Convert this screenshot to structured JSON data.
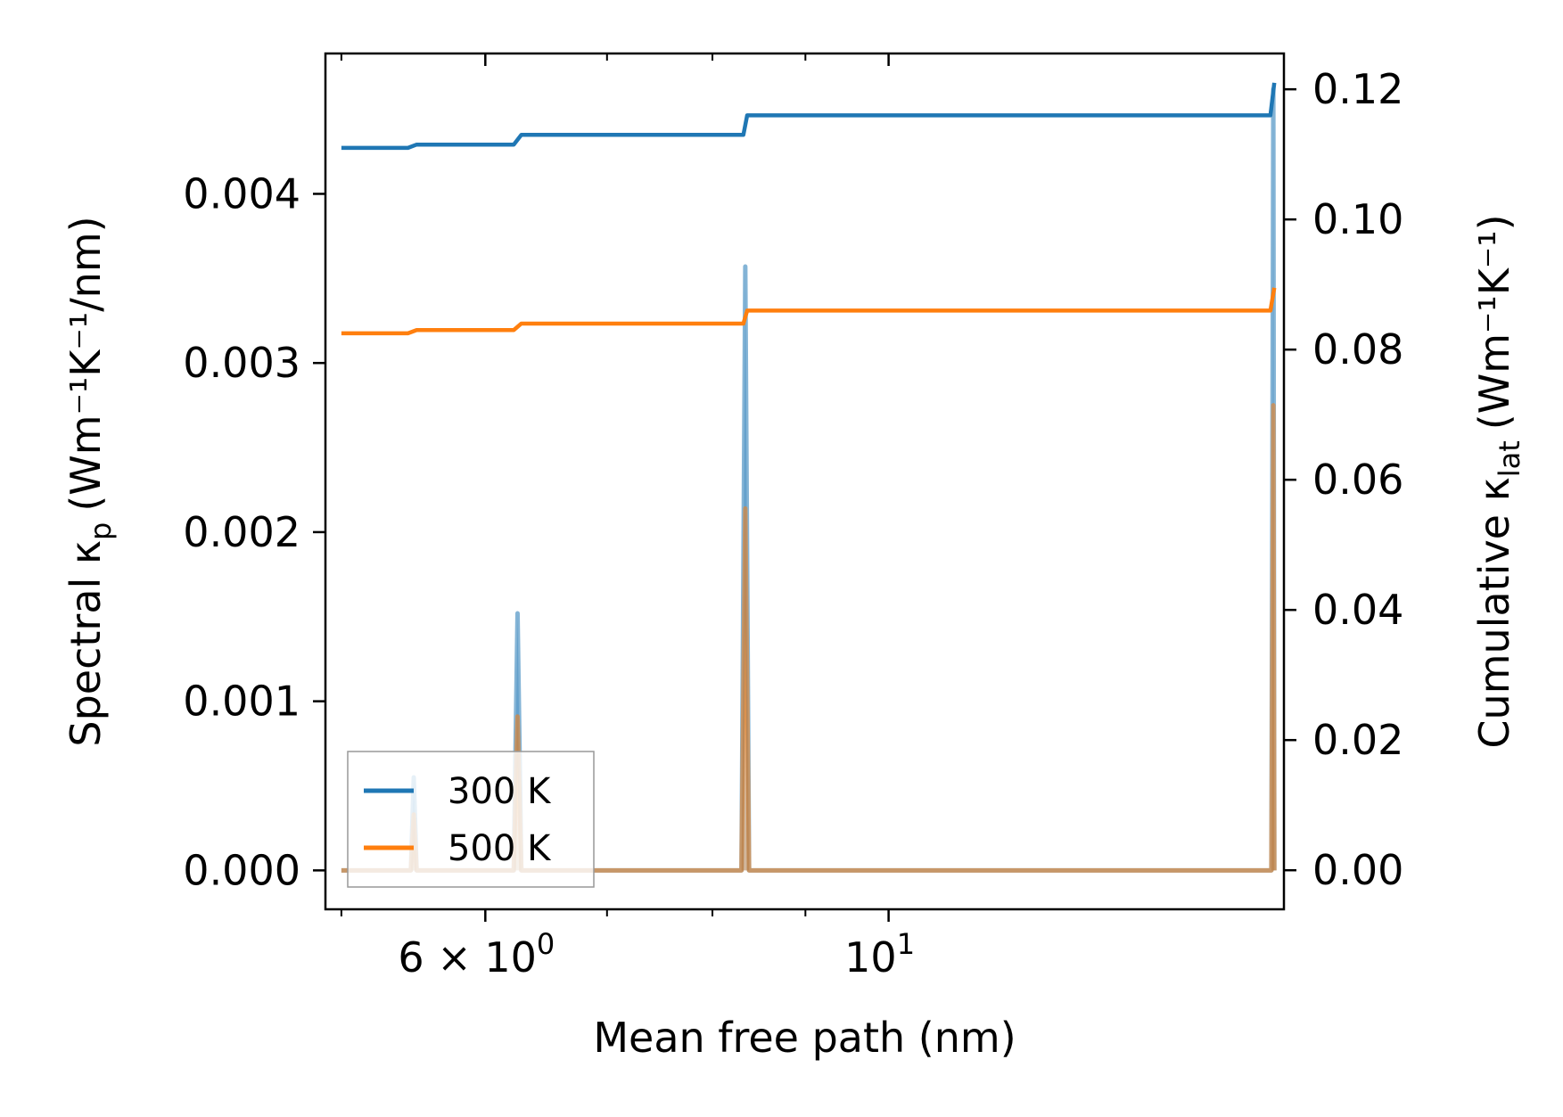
{
  "chart_data": {
    "type": "line",
    "x_axis": {
      "label": "Mean free path (nm)",
      "scale": "log",
      "range": [
        4.9,
        16.5
      ],
      "major_ticks": [
        {
          "value": 6,
          "label_base": "6 × 10",
          "label_exp": "0"
        },
        {
          "value": 10,
          "label_base": "10",
          "label_exp": "1"
        }
      ],
      "minor_ticks": [
        5,
        7,
        8,
        9,
        20
      ]
    },
    "y_axis_left": {
      "label_main": "Spectral κ",
      "label_sub": "p",
      "label_unit": "(Wm⁻¹K⁻¹/nm)",
      "range": [
        -0.00023,
        0.00483
      ],
      "ticks": [
        0.0,
        0.001,
        0.002,
        0.003,
        0.004
      ],
      "tick_labels": [
        "0.000",
        "0.001",
        "0.002",
        "0.003",
        "0.004"
      ]
    },
    "y_axis_right": {
      "label_main": "Cumulative κ",
      "label_sub": "lat",
      "label_unit": "(Wm⁻¹K⁻¹)",
      "range": [
        -0.006,
        0.1255
      ],
      "ticks": [
        0.0,
        0.02,
        0.04,
        0.06,
        0.08,
        0.1,
        0.12
      ],
      "tick_labels": [
        "0.00",
        "0.02",
        "0.04",
        "0.06",
        "0.08",
        "0.10",
        "0.12"
      ]
    },
    "legend": {
      "position": "lower-left",
      "entries": [
        "300 K",
        "500 K"
      ]
    },
    "series": [
      {
        "name": "300 K",
        "color": "#1f77b4",
        "spectral": {
          "x": [
            5.0,
            5.46,
            5.48,
            5.5,
            5.52,
            5.54,
            6.2,
            6.22,
            6.25,
            6.28,
            6.3,
            8.28,
            8.3,
            8.34,
            8.38,
            8.4,
            16.2,
            16.24,
            16.28,
            16.3
          ],
          "y": [
            0.0,
            0.0,
            0.00055,
            0.0,
            0.0,
            0.0,
            0.0,
            0.0,
            0.00152,
            0.0,
            0.0,
            0.0,
            0.0,
            0.00357,
            0.0,
            0.0,
            0.0,
            0.0,
            0.00462,
            0.0
          ]
        },
        "cumulative": {
          "x": [
            5.0,
            5.44,
            5.5,
            6.22,
            6.28,
            8.32,
            8.36,
            16.22,
            16.3
          ],
          "y": [
            0.111,
            0.111,
            0.1115,
            0.1115,
            0.113,
            0.113,
            0.116,
            0.116,
            0.121
          ]
        }
      },
      {
        "name": "500 K",
        "color": "#ff7f0e",
        "spectral": {
          "x": [
            5.0,
            5.46,
            5.48,
            5.5,
            5.52,
            5.54,
            6.2,
            6.22,
            6.25,
            6.28,
            6.3,
            8.28,
            8.3,
            8.34,
            8.38,
            8.4,
            16.2,
            16.24,
            16.28,
            16.3
          ],
          "y": [
            0.0,
            0.0,
            0.00033,
            0.0,
            0.0,
            0.0,
            0.0,
            0.0,
            0.00091,
            0.0,
            0.0,
            0.0,
            0.0,
            0.00214,
            0.0,
            0.0,
            0.0,
            0.0,
            0.00275,
            0.0
          ]
        },
        "cumulative": {
          "x": [
            5.0,
            5.44,
            5.5,
            6.22,
            6.28,
            8.32,
            8.36,
            16.22,
            16.3
          ],
          "y": [
            0.0825,
            0.0825,
            0.083,
            0.083,
            0.084,
            0.084,
            0.086,
            0.086,
            0.0895
          ]
        }
      }
    ]
  }
}
